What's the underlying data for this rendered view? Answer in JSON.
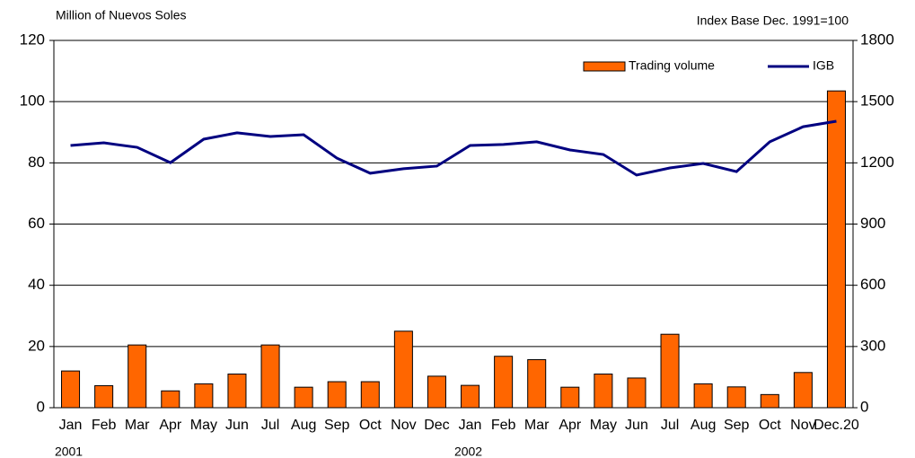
{
  "chart_data": {
    "type": "bar_line",
    "y_label": "Million of Nuevos Soles",
    "y2_label": "Index Base Dec. 1991=100",
    "categories": [
      "Jan",
      "Feb",
      "Mar",
      "Apr",
      "May",
      "Jun",
      "Jul",
      "Aug",
      "Sep",
      "Oct",
      "Nov",
      "Dec",
      "Jan",
      "Feb",
      "Mar",
      "Apr",
      "May",
      "Jun",
      "Jul",
      "Aug",
      "Sep",
      "Oct",
      "Nov",
      "Dec.20"
    ],
    "year_labels": [
      "2001",
      "2002"
    ],
    "series": [
      {
        "name": "Trading volume",
        "type": "bar",
        "color": "#ff6600",
        "values": [
          12,
          7.2,
          20.5,
          5.5,
          7.8,
          11,
          20.5,
          6.7,
          8.5,
          8.5,
          25,
          10.3,
          7.3,
          16.8,
          15.7,
          6.7,
          11,
          9.7,
          24,
          7.8,
          6.8,
          4.3,
          11.5,
          103.5
        ]
      },
      {
        "name": "IGB",
        "type": "line",
        "axis": "y2",
        "color": "#000080",
        "values": [
          1285,
          1298,
          1276,
          1201,
          1316,
          1347,
          1329,
          1338,
          1223,
          1149,
          1171,
          1184,
          1285,
          1290,
          1303,
          1263,
          1241,
          1140,
          1175,
          1197,
          1157,
          1303,
          1377,
          1404
        ]
      }
    ],
    "ylim": [
      0,
      120
    ],
    "yticks": [
      0,
      20,
      40,
      60,
      80,
      100,
      120
    ],
    "y2lim": [
      0,
      1800
    ],
    "y2ticks": [
      0,
      300,
      600,
      900,
      1200,
      1500,
      1800
    ],
    "grid": true,
    "legend": "top-right"
  }
}
